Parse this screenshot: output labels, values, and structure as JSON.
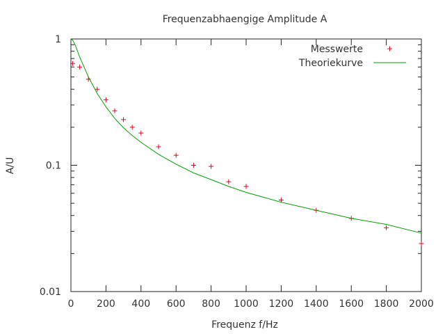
{
  "chart_data": {
    "type": "scatter",
    "title": "Frequenzabhaengige Amplitude A",
    "xlabel": "Frequenz f/Hz",
    "ylabel": "A/U",
    "xlim": [
      0,
      2000
    ],
    "ylim": [
      0.01,
      1
    ],
    "yscale": "log",
    "grid": false,
    "legend_position": "top-right",
    "x_ticks": [
      0,
      200,
      400,
      600,
      800,
      1000,
      1200,
      1400,
      1600,
      1800,
      2000
    ],
    "x_tick_labels": [
      "0",
      "200",
      "400",
      "600",
      "800",
      "1000",
      "1200",
      "1400",
      "1600",
      "1800",
      "2000"
    ],
    "y_ticks": [
      1,
      0.1,
      0.01
    ],
    "y_tick_labels": [
      "1",
      "0.1",
      "0.01"
    ],
    "series": [
      {
        "name": "Messwerte",
        "kind": "points",
        "marker": "plus",
        "color": "#e0001e",
        "x": [
          10,
          50,
          100,
          150,
          200,
          250,
          300,
          350,
          400,
          500,
          600,
          700,
          800,
          900,
          1000,
          1200,
          1400,
          1600,
          1800,
          2000
        ],
        "y": [
          0.64,
          0.6,
          0.48,
          0.4,
          0.33,
          0.27,
          0.23,
          0.2,
          0.18,
          0.14,
          0.12,
          0.1,
          0.098,
          0.074,
          0.068,
          0.053,
          0.044,
          0.038,
          0.032,
          0.024
        ]
      },
      {
        "name": "Theoriekurve",
        "kind": "line",
        "color": "#00a000",
        "x": [
          0,
          10,
          25,
          50,
          75,
          100,
          125,
          150,
          200,
          250,
          300,
          350,
          400,
          500,
          600,
          700,
          800,
          900,
          1000,
          1200,
          1400,
          1600,
          1800,
          2000
        ],
        "y": [
          1.0,
          0.98,
          0.89,
          0.72,
          0.6,
          0.5,
          0.43,
          0.37,
          0.29,
          0.235,
          0.198,
          0.172,
          0.152,
          0.122,
          0.102,
          0.087,
          0.077,
          0.068,
          0.061,
          0.051,
          0.044,
          0.038,
          0.034,
          0.029
        ]
      }
    ]
  }
}
